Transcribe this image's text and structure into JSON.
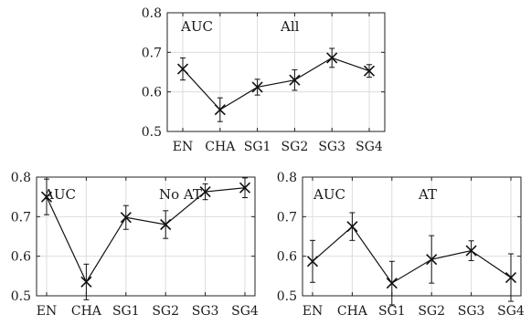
{
  "chart_data": [
    {
      "type": "line",
      "annotations": [
        "AUC",
        "All"
      ],
      "categories": [
        "EN",
        "CHA",
        "SG1",
        "SG2",
        "SG3",
        "SG4"
      ],
      "yticks": [
        "0.5",
        "0.6",
        "0.7",
        "0.8"
      ],
      "ylim": [
        0.5,
        0.8
      ],
      "grid": true,
      "series": [
        {
          "values": [
            0.658,
            0.555,
            0.612,
            0.63,
            0.686,
            0.653
          ],
          "errors": [
            0.028,
            0.03,
            0.02,
            0.026,
            0.024,
            0.016
          ]
        }
      ]
    },
    {
      "type": "line",
      "annotations": [
        "AUC",
        "No AT"
      ],
      "categories": [
        "EN",
        "CHA",
        "SG1",
        "SG2",
        "SG3",
        "SG4"
      ],
      "yticks": [
        "0.5",
        "0.6",
        "0.7",
        "0.8"
      ],
      "ylim": [
        0.5,
        0.8
      ],
      "grid": true,
      "series": [
        {
          "values": [
            0.75,
            0.535,
            0.698,
            0.68,
            0.763,
            0.773
          ],
          "errors": [
            0.045,
            0.045,
            0.03,
            0.035,
            0.02,
            0.025
          ]
        }
      ]
    },
    {
      "type": "line",
      "annotations": [
        "AUC",
        "AT"
      ],
      "categories": [
        "EN",
        "CHA",
        "SG1",
        "SG2",
        "SG3",
        "SG4"
      ],
      "yticks": [
        "0.5",
        "0.6",
        "0.7",
        "0.8"
      ],
      "ylim": [
        0.5,
        0.8
      ],
      "grid": true,
      "series": [
        {
          "values": [
            0.587,
            0.675,
            0.532,
            0.592,
            0.614,
            0.546
          ],
          "errors": [
            0.053,
            0.035,
            0.055,
            0.06,
            0.025,
            0.06
          ]
        }
      ]
    }
  ]
}
